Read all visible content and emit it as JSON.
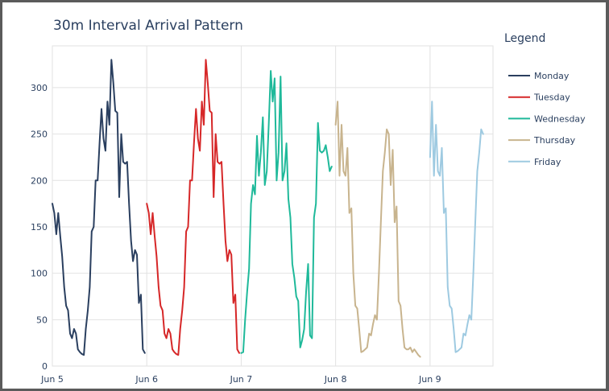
{
  "chart_data": {
    "type": "line",
    "title": "30m Interval Arrival Pattern",
    "xlabel": "",
    "ylabel": "",
    "legend_title": "Legend",
    "legend_position": "right",
    "grid": true,
    "xlim": [
      "Jun 5",
      "Jun 9 16:00"
    ],
    "ylim": [
      0,
      345
    ],
    "x_ticks": [
      "Jun 5",
      "Jun 6",
      "Jun 7",
      "Jun 8",
      "Jun 9"
    ],
    "y_ticks": [
      0,
      50,
      100,
      150,
      200,
      250,
      300
    ],
    "series": [
      {
        "name": "Monday",
        "color": "#2a3f5f",
        "start": "Jun 5 00:00",
        "interval": "30min",
        "values": [
          175,
          165,
          142,
          165,
          140,
          118,
          85,
          65,
          60,
          35,
          30,
          40,
          35,
          18,
          15,
          13,
          12,
          40,
          60,
          85,
          145,
          150,
          200,
          200,
          240,
          277,
          245,
          232,
          285,
          260,
          330,
          305,
          275,
          273,
          182,
          250,
          220,
          218,
          220,
          175,
          135,
          113,
          125,
          120,
          68,
          77,
          18,
          14
        ]
      },
      {
        "name": "Tuesday",
        "color": "#d62728",
        "start": "Jun 6 00:00",
        "interval": "30min",
        "values": [
          175,
          165,
          142,
          165,
          140,
          118,
          85,
          65,
          60,
          35,
          30,
          40,
          35,
          18,
          15,
          13,
          12,
          40,
          60,
          85,
          145,
          150,
          200,
          200,
          240,
          277,
          245,
          232,
          285,
          260,
          330,
          305,
          275,
          273,
          182,
          250,
          220,
          218,
          220,
          175,
          135,
          113,
          125,
          120,
          68,
          77,
          18,
          14
        ]
      },
      {
        "name": "Wednesday",
        "color": "#1fb99a",
        "start": "Jun 7 00:00",
        "interval": "30min",
        "values": [
          14,
          15,
          50,
          80,
          105,
          175,
          195,
          185,
          248,
          205,
          230,
          268,
          195,
          210,
          260,
          318,
          285,
          310,
          200,
          230,
          312,
          200,
          210,
          240,
          180,
          160,
          110,
          95,
          75,
          70,
          20,
          28,
          40,
          80,
          110,
          33,
          30,
          160,
          175,
          262,
          232,
          230,
          232,
          238,
          225,
          210,
          215
        ]
      },
      {
        "name": "Thursday",
        "color": "#c8b48e",
        "start": "Jun 8 00:00",
        "interval": "30min",
        "values": [
          260,
          285,
          205,
          260,
          210,
          205,
          235,
          165,
          170,
          100,
          65,
          62,
          40,
          15,
          16,
          18,
          20,
          35,
          33,
          45,
          55,
          50,
          100,
          155,
          210,
          230,
          255,
          250,
          195,
          233,
          155,
          172,
          70,
          65,
          40,
          20,
          18,
          18,
          20,
          15,
          18,
          15,
          12,
          10
        ]
      },
      {
        "name": "Friday",
        "color": "#9ecae1",
        "start": "Jun 9 00:00",
        "interval": "30min",
        "values": [
          225,
          285,
          205,
          260,
          210,
          205,
          235,
          165,
          170,
          85,
          65,
          62,
          40,
          15,
          16,
          18,
          20,
          35,
          33,
          45,
          55,
          50,
          100,
          155,
          210,
          230,
          255,
          250
        ]
      }
    ]
  }
}
